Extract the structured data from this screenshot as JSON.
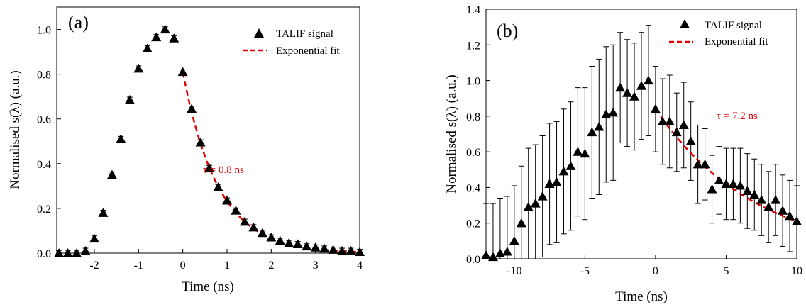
{
  "chart_data": [
    {
      "panel": "(a)",
      "type": "scatter",
      "xlabel": "Time (ns)",
      "ylabel": "Normalised s(λ) (a.u.)",
      "xlim": [
        -2.85,
        4.0
      ],
      "ylim": [
        0.0,
        1.1
      ],
      "x_ticks": [
        "-2",
        "-1",
        "0",
        "1",
        "2",
        "3",
        "4"
      ],
      "y_ticks": [
        "0.0",
        "0.2",
        "0.4",
        "0.6",
        "0.8",
        "1.0"
      ],
      "legend": [
        "TALIF signal",
        "Exponential fit"
      ],
      "legend_position": "top-right",
      "annotation": "τ = 0.8 ns",
      "series": [
        {
          "name": "TALIF signal",
          "marker": "triangle",
          "color": "#000000",
          "x": [
            -2.8,
            -2.6,
            -2.4,
            -2.2,
            -2.0,
            -1.8,
            -1.6,
            -1.4,
            -1.2,
            -1.0,
            -0.8,
            -0.6,
            -0.4,
            -0.2,
            0.0,
            0.2,
            0.4,
            0.6,
            0.8,
            1.0,
            1.2,
            1.4,
            1.6,
            1.8,
            2.0,
            2.2,
            2.4,
            2.6,
            2.8,
            3.0,
            3.2,
            3.4,
            3.6,
            3.8,
            4.0
          ],
          "y": [
            0.0,
            0.0,
            0.0,
            0.01,
            0.065,
            0.18,
            0.35,
            0.51,
            0.685,
            0.825,
            0.915,
            0.965,
            1.0,
            0.96,
            0.81,
            0.645,
            0.495,
            0.38,
            0.295,
            0.235,
            0.19,
            0.14,
            0.115,
            0.09,
            0.07,
            0.055,
            0.045,
            0.04,
            0.03,
            0.025,
            0.02,
            0.015,
            0.01,
            0.01,
            0.005
          ],
          "error": 0.012
        },
        {
          "name": "Exponential fit",
          "style": "dashed",
          "color": "#e00000",
          "tau": 0.8,
          "x_start": 0.0,
          "x_end": 4.0,
          "y0": 0.81
        }
      ]
    },
    {
      "panel": "(b)",
      "type": "scatter",
      "xlabel": "Time (ns)",
      "ylabel": "Normalised s(λ) (a.u.)",
      "xlim": [
        -12.0,
        10.0
      ],
      "ylim": [
        0.0,
        1.4
      ],
      "x_ticks": [
        "-10",
        "-5",
        "0",
        "5",
        "10"
      ],
      "y_ticks": [
        "0.0",
        "0.2",
        "0.4",
        "0.6",
        "0.8",
        "1.0",
        "1.2",
        "1.4"
      ],
      "legend": [
        "TALIF signal",
        "Exponential fit"
      ],
      "legend_position": "top-right",
      "annotation": "τ = 7.2 ns",
      "series": [
        {
          "name": "TALIF signal",
          "marker": "triangle",
          "color": "#000000",
          "x": [
            -12,
            -11.5,
            -11,
            -10.5,
            -10,
            -9.5,
            -9,
            -8.5,
            -8,
            -7.5,
            -7,
            -6.5,
            -6,
            -5.5,
            -5,
            -4.5,
            -4,
            -3.5,
            -3,
            -2.5,
            -2,
            -1.5,
            -1,
            -0.5,
            0,
            0.5,
            1,
            1.5,
            2,
            2.5,
            3,
            3.5,
            4,
            4.5,
            5,
            5.5,
            6,
            6.5,
            7,
            7.5,
            8,
            8.5,
            9,
            9.5,
            10
          ],
          "y": [
            0.02,
            0.01,
            0.03,
            0.04,
            0.1,
            0.2,
            0.29,
            0.31,
            0.35,
            0.42,
            0.43,
            0.49,
            0.52,
            0.6,
            0.59,
            0.71,
            0.74,
            0.81,
            0.82,
            0.96,
            0.93,
            0.91,
            0.97,
            1.0,
            0.84,
            0.77,
            0.77,
            0.71,
            0.75,
            0.66,
            0.53,
            0.53,
            0.39,
            0.44,
            0.42,
            0.42,
            0.41,
            0.38,
            0.36,
            0.33,
            0.29,
            0.33,
            0.27,
            0.24,
            0.21
          ],
          "error": [
            0.29,
            0.3,
            0.31,
            0.31,
            0.31,
            0.32,
            0.33,
            0.33,
            0.34,
            0.34,
            0.34,
            0.35,
            0.36,
            0.36,
            0.37,
            0.37,
            0.38,
            0.38,
            0.38,
            0.31,
            0.3,
            0.3,
            0.3,
            0.31,
            0.24,
            0.24,
            0.26,
            0.22,
            0.24,
            0.22,
            0.22,
            0.2,
            0.19,
            0.19,
            0.2,
            0.2,
            0.21,
            0.21,
            0.2,
            0.2,
            0.2,
            0.2,
            0.2,
            0.2,
            0.2
          ]
        },
        {
          "name": "Exponential fit",
          "style": "dashed",
          "color": "#e00000",
          "tau": 7.2,
          "x_start": 0.0,
          "x_end": 10.0,
          "y0": 0.84
        }
      ]
    }
  ]
}
